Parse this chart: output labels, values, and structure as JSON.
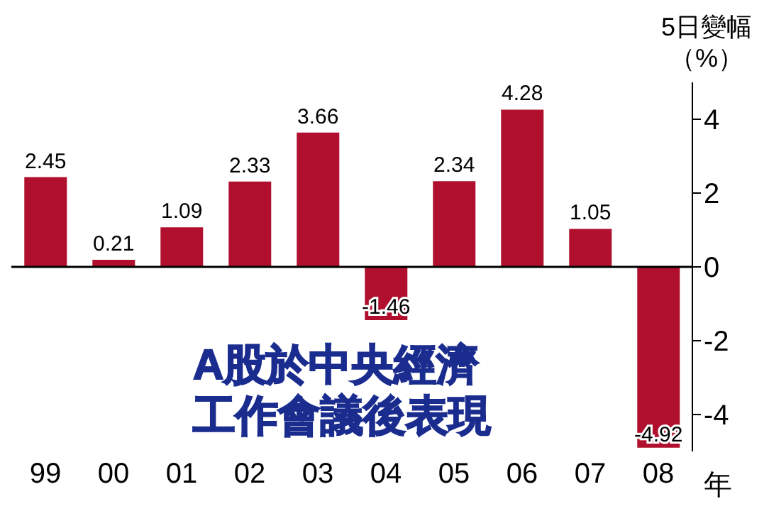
{
  "chart_data": {
    "type": "bar",
    "title": "A股於中央經濟工作會議後表現",
    "ylabel": "5日變幅（%）",
    "xlabel": "年",
    "categories": [
      "99",
      "00",
      "01",
      "02",
      "03",
      "04",
      "05",
      "06",
      "07",
      "08"
    ],
    "values": [
      2.45,
      0.21,
      1.09,
      2.33,
      3.66,
      -1.46,
      2.34,
      4.28,
      1.05,
      -4.92
    ],
    "color": "#b0102e",
    "ylim": [
      -5,
      5
    ],
    "yticks": [
      -4,
      -2,
      0,
      2,
      4
    ],
    "data_labels": true
  }
}
